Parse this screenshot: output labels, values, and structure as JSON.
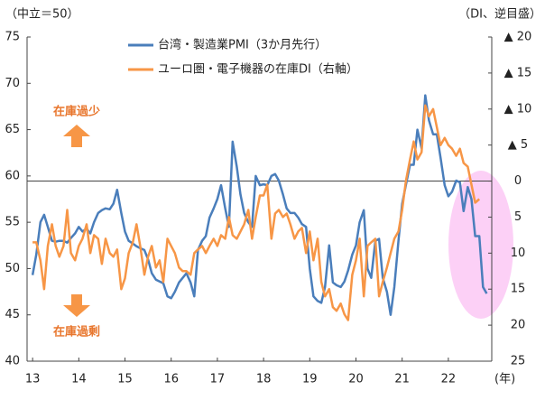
{
  "chart_data": {
    "type": "line",
    "y_label": "（中立＝50）",
    "y2_label": "（DI、逆目盛）",
    "x_label": "(年)",
    "annotations": [
      {
        "text": "在庫過少"
      },
      {
        "text": "在庫過剰"
      }
    ],
    "x": [
      13.0,
      13.08,
      13.17,
      13.25,
      13.33,
      13.42,
      13.5,
      13.58,
      13.67,
      13.75,
      13.83,
      13.92,
      14.0,
      14.08,
      14.17,
      14.25,
      14.33,
      14.42,
      14.5,
      14.58,
      14.67,
      14.75,
      14.83,
      14.92,
      15.0,
      15.08,
      15.17,
      15.25,
      15.33,
      15.42,
      15.5,
      15.58,
      15.67,
      15.75,
      15.83,
      15.92,
      16.0,
      16.08,
      16.17,
      16.25,
      16.33,
      16.42,
      16.5,
      16.58,
      16.67,
      16.75,
      16.83,
      16.92,
      17.0,
      17.08,
      17.17,
      17.25,
      17.33,
      17.42,
      17.5,
      17.58,
      17.67,
      17.75,
      17.83,
      17.92,
      18.0,
      18.08,
      18.17,
      18.25,
      18.33,
      18.42,
      18.5,
      18.58,
      18.67,
      18.75,
      18.83,
      18.92,
      19.0,
      19.08,
      19.17,
      19.25,
      19.33,
      19.42,
      19.5,
      19.58,
      19.67,
      19.75,
      19.83,
      19.92,
      20.0,
      20.08,
      20.17,
      20.25,
      20.33,
      20.42,
      20.5,
      20.58,
      20.67,
      20.75,
      20.83,
      20.92,
      21.0,
      21.08,
      21.17,
      21.25,
      21.33,
      21.42,
      21.5,
      21.58,
      21.67,
      21.75,
      21.83,
      21.92,
      22.0,
      22.08,
      22.17,
      22.25,
      22.33,
      22.42,
      22.5,
      22.58,
      22.67,
      22.75,
      22.83
    ],
    "series": [
      {
        "name": "台湾・製造業PMI（3か月先行）",
        "color": "#4a7ebb",
        "values": [
          49.3,
          51.5,
          55,
          55.8,
          54.5,
          53,
          52.9,
          53,
          53,
          52.8,
          53.3,
          53.8,
          54.5,
          54,
          54.3,
          53.8,
          55,
          56,
          56.3,
          56.5,
          56.4,
          57,
          58.5,
          56,
          54,
          53,
          52.7,
          52.4,
          52.2,
          52,
          51,
          49.5,
          48.8,
          48.6,
          48.4,
          47,
          46.8,
          47.5,
          48.5,
          49,
          49.5,
          48.5,
          47,
          52,
          53,
          53.5,
          55.5,
          56.5,
          57.5,
          59,
          56.5,
          54.5,
          63.7,
          61,
          58,
          56,
          55,
          54.5,
          60,
          59,
          59.1,
          59,
          60,
          60.2,
          59.5,
          58,
          56.5,
          56,
          56,
          55.5,
          54.8,
          54.5,
          50,
          47,
          46.5,
          46.3,
          48,
          52.5,
          48.5,
          48.2,
          48,
          48.6,
          49.8,
          51.5,
          52.5,
          55,
          56.3,
          50,
          49,
          53,
          53.2,
          49,
          47.5,
          45,
          48,
          53,
          57,
          59,
          61.2,
          61.2,
          65,
          63,
          68.7,
          66,
          64.5,
          64.5,
          62,
          59,
          57.8,
          58.3,
          59.5,
          59.3,
          56.2,
          58.8,
          57.5,
          53.5,
          53.5,
          48,
          47.3
        ]
      },
      {
        "name": "ユーロ圏・電子機器の在庫DI（右軸）",
        "color": "#f79646",
        "axis": "y2",
        "values": [
          8.5,
          8.5,
          11,
          15,
          9,
          6,
          9,
          10.5,
          9,
          4,
          10,
          11,
          9,
          8,
          6,
          10,
          7.5,
          8,
          11.5,
          8,
          10,
          10.5,
          9.5,
          15,
          13.5,
          10,
          8.5,
          6,
          9,
          13,
          10.5,
          9,
          12,
          11,
          14,
          8,
          9,
          10,
          12,
          12.5,
          12.5,
          13,
          10,
          9.5,
          9,
          10,
          9,
          8,
          9,
          7.5,
          8,
          5,
          7.5,
          8,
          7,
          6,
          4,
          8,
          5,
          2,
          2,
          0.5,
          8,
          4.5,
          4,
          5,
          4.5,
          6,
          8,
          7,
          6.5,
          10,
          7,
          11,
          8,
          14,
          16,
          15,
          17.5,
          18,
          17,
          18.5,
          19.3,
          13,
          11,
          8,
          16,
          9,
          8.5,
          8,
          16,
          14,
          12,
          10,
          8,
          7,
          4,
          0,
          -3,
          -5.5,
          -3,
          -4,
          -10.5,
          -9,
          -10,
          -7.5,
          -5,
          -6,
          -5,
          -4.5,
          -3.5,
          -4.5,
          -2.5,
          -2,
          0.5,
          3,
          2.5,
          null,
          null
        ]
      }
    ],
    "xlim": [
      12.88,
      22.94
    ],
    "xticks": [
      13,
      14,
      15,
      16,
      17,
      18,
      19,
      20,
      21,
      22
    ],
    "ylim": [
      40,
      75
    ],
    "yticks": [
      40,
      45,
      50,
      55,
      60,
      65,
      70,
      75
    ],
    "y2lim": [
      25,
      -20
    ],
    "y2ticks": [
      {
        "value": -20,
        "label": "▲ 20"
      },
      {
        "value": -15,
        "label": "▲ 15"
      },
      {
        "value": -10,
        "label": "▲ 10"
      },
      {
        "value": -5,
        "label": "▲ 5"
      },
      0,
      5,
      10,
      15,
      20,
      25
    ]
  }
}
